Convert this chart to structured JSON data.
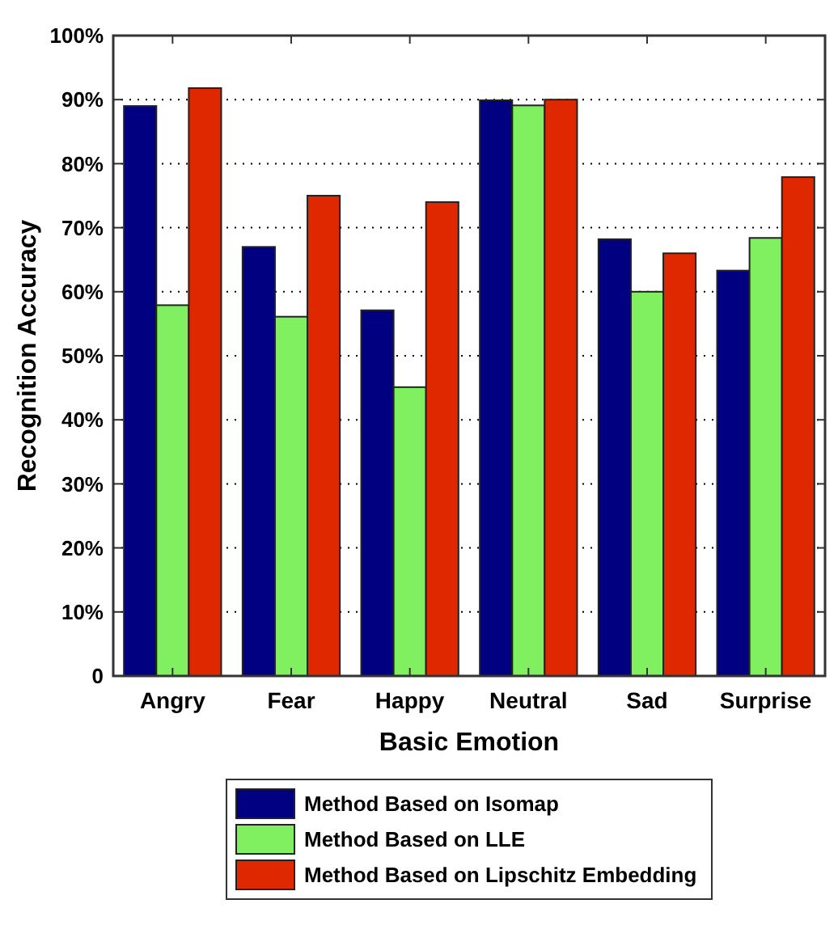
{
  "chart_data": {
    "type": "bar",
    "xlabel": "Basic Emotion",
    "ylabel": "Recognition Accuracy",
    "categories": [
      "Angry",
      "Fear",
      "Happy",
      "Neutral",
      "Sad",
      "Surprise"
    ],
    "series": [
      {
        "name": "Method Based on Isomap",
        "color": "#000080",
        "values": [
          89.0,
          67.0,
          57.1,
          89.9,
          68.2,
          63.3
        ]
      },
      {
        "name": "Method Based on LLE",
        "color": "#80f060",
        "values": [
          57.9,
          56.1,
          45.1,
          89.1,
          60.0,
          68.4
        ]
      },
      {
        "name": "Method Based on Lipschitz Embedding",
        "color": "#e02800",
        "values": [
          91.8,
          75.0,
          74.0,
          90.0,
          66.0,
          77.9
        ]
      }
    ],
    "ylim": [
      0,
      100
    ],
    "yticks": [
      {
        "value": 0,
        "label": "0"
      },
      {
        "value": 10,
        "label": "10%"
      },
      {
        "value": 20,
        "label": "20%"
      },
      {
        "value": 30,
        "label": "30%"
      },
      {
        "value": 40,
        "label": "40%"
      },
      {
        "value": 50,
        "label": "50%"
      },
      {
        "value": 60,
        "label": "60%"
      },
      {
        "value": 70,
        "label": "70%"
      },
      {
        "value": 80,
        "label": "80%"
      },
      {
        "value": 90,
        "label": "90%"
      },
      {
        "value": 100,
        "label": "100%"
      }
    ],
    "grid": "y",
    "legend": "bottom"
  }
}
